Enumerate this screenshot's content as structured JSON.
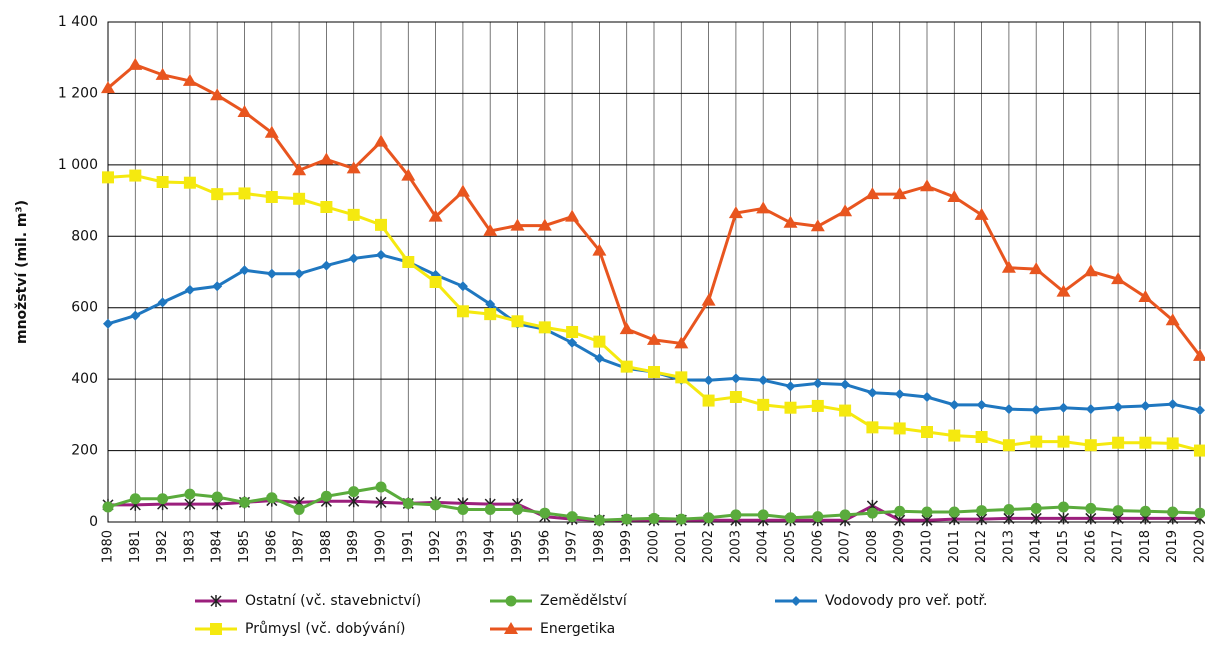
{
  "chart_data": {
    "type": "line",
    "y_label": "množství (mil. m³)",
    "categories": [
      "1980",
      "1981",
      "1982",
      "1983",
      "1984",
      "1985",
      "1986",
      "1987",
      "1988",
      "1989",
      "1990",
      "1991",
      "1992",
      "1993",
      "1994",
      "1995",
      "1996",
      "1997",
      "1998",
      "1999",
      "2000",
      "2001",
      "2002",
      "2003",
      "2004",
      "2005",
      "2006",
      "2007",
      "2008",
      "2009",
      "2010",
      "2011",
      "2012",
      "2013",
      "2014",
      "2015",
      "2016",
      "2017",
      "2018",
      "2019",
      "2020"
    ],
    "ylim": [
      0,
      1400
    ],
    "yticks": [
      0,
      200,
      400,
      600,
      800,
      {
        "value": 1000,
        "label": "1 000"
      },
      {
        "value": 1200,
        "label": "1 200"
      },
      {
        "value": 1400,
        "label": "1 400"
      }
    ],
    "grid": true,
    "series": [
      {
        "name": "Ostatní (vč. stavebnictví)",
        "color": "#9b1f7c",
        "marker": "star",
        "values": [
          48,
          48,
          50,
          50,
          50,
          55,
          60,
          55,
          58,
          58,
          55,
          52,
          55,
          52,
          50,
          50,
          15,
          8,
          5,
          5,
          5,
          5,
          5,
          5,
          5,
          5,
          5,
          5,
          45,
          5,
          5,
          8,
          8,
          10,
          10,
          10,
          10,
          10,
          10,
          10,
          10
        ]
      },
      {
        "name": "Zemědělství",
        "color": "#5aab3c",
        "marker": "circle",
        "values": [
          42,
          65,
          65,
          78,
          70,
          55,
          68,
          35,
          72,
          85,
          98,
          52,
          48,
          35,
          35,
          35,
          25,
          15,
          5,
          8,
          10,
          8,
          12,
          20,
          20,
          12,
          15,
          20,
          25,
          30,
          28,
          28,
          32,
          35,
          38,
          42,
          38,
          32,
          30,
          28,
          25
        ]
      },
      {
        "name": "Vodovody pro veř. potř.",
        "color": "#1f77c0",
        "marker": "diamond",
        "values": [
          555,
          578,
          615,
          650,
          660,
          705,
          695,
          695,
          718,
          738,
          748,
          728,
          692,
          660,
          610,
          555,
          540,
          502,
          458,
          430,
          420,
          398,
          397,
          402,
          397,
          380,
          388,
          385,
          362,
          358,
          350,
          328,
          328,
          316,
          314,
          320,
          316,
          322,
          325,
          330,
          313
        ]
      },
      {
        "name": "Průmysl (vč. dobývání)",
        "color": "#f5e90f",
        "marker": "square",
        "values": [
          965,
          970,
          952,
          950,
          918,
          920,
          910,
          905,
          882,
          860,
          832,
          728,
          672,
          590,
          582,
          562,
          545,
          532,
          505,
          435,
          420,
          405,
          340,
          350,
          328,
          320,
          325,
          312,
          265,
          262,
          252,
          242,
          238,
          215,
          225,
          225,
          215,
          222,
          222,
          220,
          200
        ]
      },
      {
        "name": "Energetika",
        "color": "#e8551f",
        "marker": "triangle",
        "values": [
          1215,
          1280,
          1252,
          1235,
          1195,
          1148,
          1090,
          985,
          1015,
          990,
          1065,
          970,
          855,
          925,
          815,
          830,
          830,
          855,
          760,
          540,
          510,
          500,
          620,
          865,
          878,
          838,
          828,
          870,
          918,
          918,
          940,
          910,
          860,
          712,
          708,
          645,
          702,
          680,
          630,
          565,
          465
        ]
      }
    ]
  }
}
